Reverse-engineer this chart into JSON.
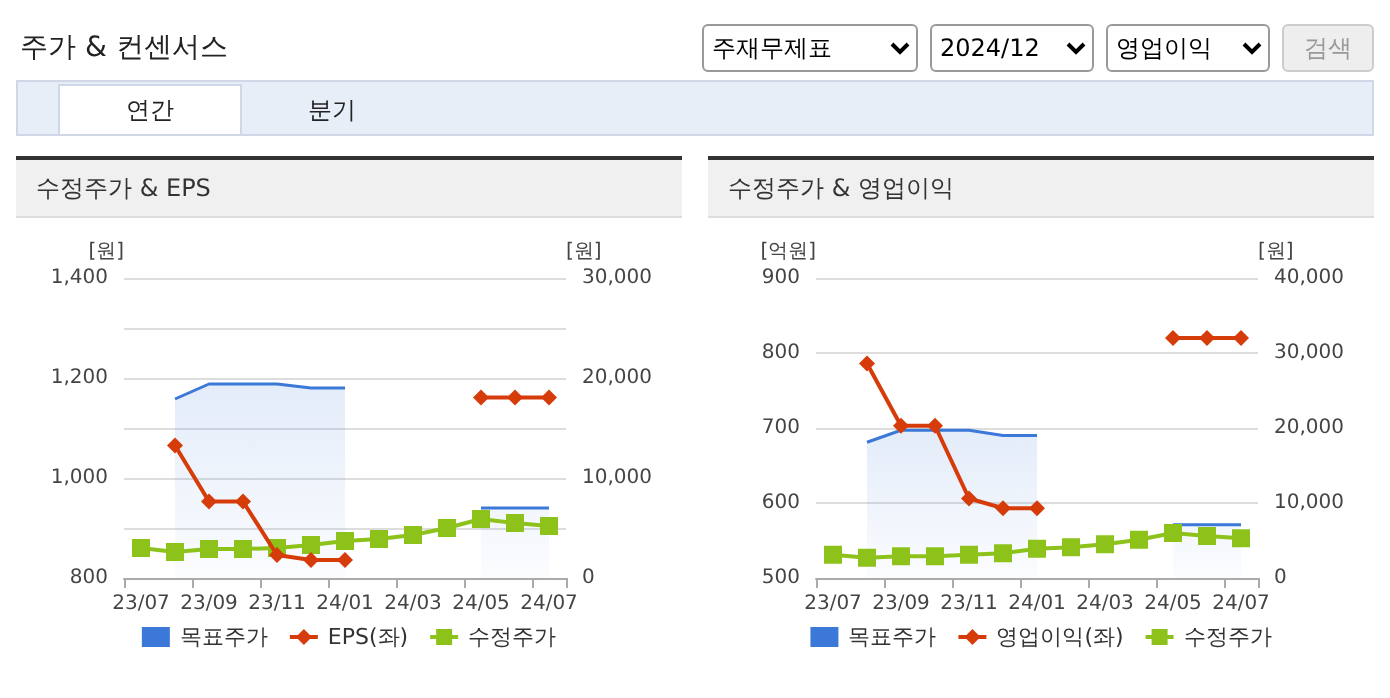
{
  "chart_data": [
    {
      "type": "other",
      "title": "주가 & 컨센서스",
      "annotations": [
        "주재무제표",
        "2024/12",
        "영업이익",
        "검색",
        "연간",
        "분기"
      ]
    },
    {
      "type": "line",
      "title": "수정주가 & EPS",
      "ylabel": "[원]",
      "y2label": "[원]",
      "categories": [
        "23/07",
        null,
        "23/09",
        null,
        "23/11",
        null,
        "24/01",
        null,
        "24/03",
        null,
        "24/05",
        null,
        "24/07"
      ],
      "ylim": [
        800,
        1400
      ],
      "yticks": [
        800,
        {
          "value": 1000,
          "label": "1,000"
        },
        {
          "value": 1200,
          "label": "1,200"
        },
        {
          "value": 1400,
          "label": "1,400"
        }
      ],
      "y2lim": [
        0,
        30000
      ],
      "y2ticks": [
        0,
        {
          "value": 10000,
          "label": "10,000"
        },
        {
          "value": 20000,
          "label": "20,000"
        },
        {
          "value": 30000,
          "label": "30,000"
        }
      ],
      "grid": "y",
      "legend": "bottom",
      "series": [
        {
          "name": "목표주가",
          "type": "area",
          "axis": "y2",
          "color": "#3b78d8",
          "marker": "none",
          "values": [
            null,
            17900,
            19400,
            19400,
            19400,
            19000,
            19000,
            null,
            null,
            null,
            7000,
            7000,
            7000
          ]
        },
        {
          "name": "EPS(좌)",
          "type": "line",
          "color": "#d63c0a",
          "marker": "diamond",
          "values": [
            null,
            1065,
            953,
            953,
            846,
            836,
            836,
            null,
            null,
            null,
            1161,
            1161,
            1161
          ]
        },
        {
          "name": "수정주가",
          "type": "line",
          "axis": "y2",
          "color": "#8cc21a",
          "marker": "square",
          "values": [
            3000,
            2600,
            2900,
            2900,
            3000,
            3300,
            3700,
            3900,
            4300,
            5000,
            5900,
            5500,
            5200
          ]
        }
      ]
    },
    {
      "type": "line",
      "title": "수정주가 & 영업이익",
      "ylabel": "[억원]",
      "y2label": "[원]",
      "categories": [
        "23/07",
        null,
        "23/09",
        null,
        "23/11",
        null,
        "24/01",
        null,
        "24/03",
        null,
        "24/05",
        null,
        "24/07"
      ],
      "ylim": [
        500,
        900
      ],
      "yticks": [
        500,
        600,
        700,
        800,
        900
      ],
      "y2lim": [
        0,
        40000
      ],
      "y2ticks": [
        0,
        {
          "value": 10000,
          "label": "10,000"
        },
        {
          "value": 20000,
          "label": "20,000"
        },
        {
          "value": 30000,
          "label": "30,000"
        },
        {
          "value": 40000,
          "label": "40,000"
        }
      ],
      "grid": "y",
      "legend": "bottom",
      "series": [
        {
          "name": "목표주가",
          "type": "area",
          "axis": "y2",
          "color": "#3b78d8",
          "marker": "none",
          "values": [
            null,
            18100,
            19700,
            19700,
            19700,
            19000,
            19000,
            null,
            null,
            null,
            7100,
            7100,
            7100
          ]
        },
        {
          "name": "영업이익(좌)",
          "type": "line",
          "color": "#d63c0a",
          "marker": "diamond",
          "values": [
            null,
            786,
            703,
            703,
            606,
            593,
            593,
            null,
            null,
            null,
            820,
            820,
            820
          ]
        },
        {
          "name": "수정주가",
          "type": "line",
          "axis": "y2",
          "color": "#8cc21a",
          "marker": "square",
          "values": [
            3100,
            2700,
            2900,
            2900,
            3100,
            3300,
            3900,
            4100,
            4500,
            5100,
            6000,
            5600,
            5300
          ]
        }
      ]
    }
  ]
}
